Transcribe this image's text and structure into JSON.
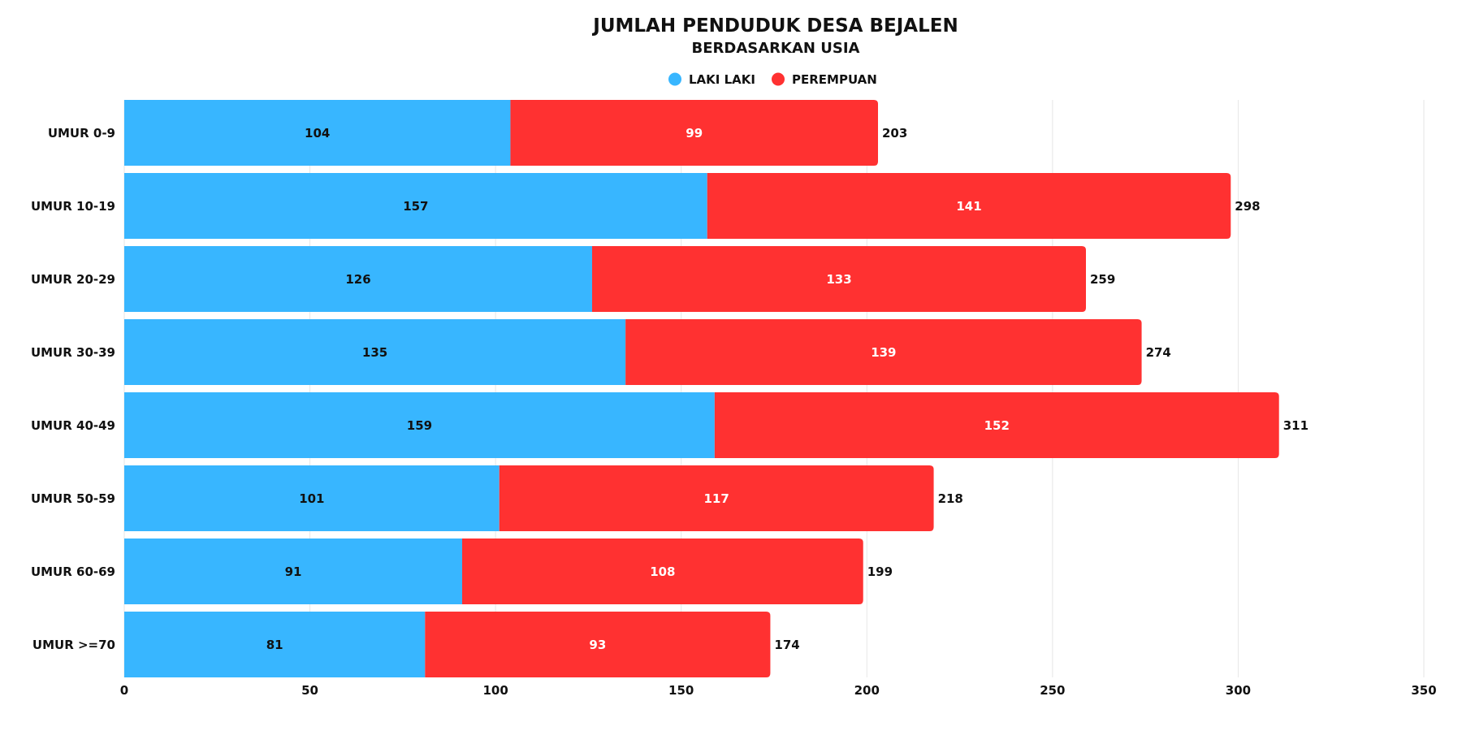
{
  "chart_data": {
    "type": "bar",
    "orientation": "horizontal",
    "stacked": true,
    "title": "JUMLAH PENDUDUK DESA BEJALEN",
    "subtitle": "BERDASARKAN USIA",
    "categories": [
      "UMUR 0-9",
      "UMUR 10-19",
      "UMUR 20-29",
      "UMUR 30-39",
      "UMUR 40-49",
      "UMUR 50-59",
      "UMUR 60-69",
      "UMUR >=70"
    ],
    "series": [
      {
        "name": "LAKI LAKI",
        "color": "#38b6ff",
        "label_color": "#111111",
        "values": [
          104,
          157,
          126,
          135,
          159,
          101,
          91,
          81
        ]
      },
      {
        "name": "PEREMPUAN",
        "color": "#ff3131",
        "label_color": "#ffffff",
        "values": [
          99,
          141,
          133,
          139,
          152,
          117,
          108,
          93
        ]
      }
    ],
    "totals": [
      203,
      298,
      259,
      274,
      311,
      218,
      199,
      174
    ],
    "xlim": [
      0,
      350
    ],
    "xticks": [
      "0",
      "50",
      "100",
      "150",
      "200",
      "250",
      "300",
      "350"
    ],
    "grid": true,
    "legend_position": "top-center",
    "xlabel": "",
    "ylabel": ""
  }
}
